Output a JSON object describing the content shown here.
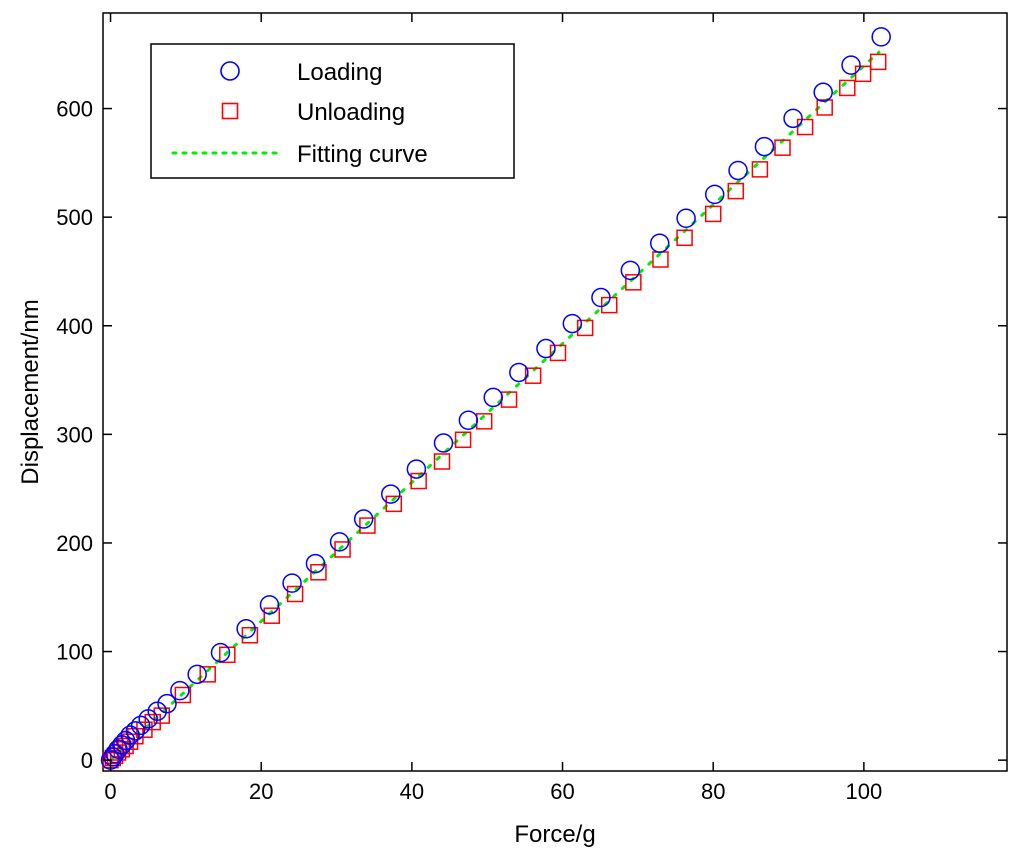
{
  "chart_data": {
    "type": "scatter",
    "title": "",
    "xlabel": "Force/g",
    "ylabel": "Displacement/nm",
    "xlim": [
      -1,
      119
    ],
    "ylim": [
      -10,
      688
    ],
    "xticks": [
      0,
      20,
      40,
      60,
      80,
      100
    ],
    "yticks": [
      0,
      100,
      200,
      300,
      400,
      500,
      600
    ],
    "grid": false,
    "legend_position": "top-left",
    "series": [
      {
        "name": "Loading",
        "marker": "circle",
        "color": "#0000ff",
        "x": [
          0,
          0.3,
          0.6,
          1.0,
          1.5,
          2.0,
          2.6,
          3.3,
          4.0,
          5.0,
          6.2,
          7.5,
          9.2,
          11.5,
          14.6,
          18.0,
          21.1,
          24.1,
          27.2,
          30.4,
          33.6,
          37.2,
          40.6,
          44.2,
          47.5,
          50.8,
          54.2,
          57.8,
          61.3,
          65.1,
          69.0,
          72.9,
          76.4,
          80.2,
          83.3,
          86.8,
          90.6,
          94.6,
          98.3,
          102.3
        ],
        "y": [
          0,
          3,
          6,
          10,
          14,
          18,
          23,
          27,
          32,
          38,
          45,
          52,
          64,
          79,
          99,
          121,
          143,
          163,
          181,
          201,
          222,
          245,
          268,
          292,
          313,
          334,
          357,
          379,
          402,
          426,
          451,
          476,
          499,
          521,
          543,
          565,
          591,
          615,
          640,
          666
        ]
      },
      {
        "name": "Unloading",
        "marker": "square",
        "color": "#ff0000",
        "x": [
          0,
          0.3,
          0.6,
          1.0,
          1.5,
          2.0,
          2.6,
          3.3,
          4.5,
          5.6,
          6.8,
          9.6,
          12.9,
          15.5,
          18.5,
          21.4,
          24.5,
          27.6,
          30.8,
          34.1,
          37.6,
          40.9,
          44.0,
          46.8,
          49.6,
          52.9,
          56.1,
          59.4,
          63.0,
          66.2,
          69.4,
          73.0,
          76.2,
          80.0,
          83.0,
          86.2,
          89.2,
          92.2,
          94.8,
          97.8,
          99.9,
          101.9
        ],
        "y": [
          0,
          2,
          4,
          7,
          10,
          13,
          17,
          22,
          28,
          35,
          41,
          60,
          79,
          97,
          115,
          133,
          153,
          173,
          194,
          216,
          236,
          257,
          275,
          295,
          312,
          332,
          354,
          375,
          398,
          419,
          440,
          461,
          481,
          503,
          524,
          544,
          564,
          583,
          601,
          619,
          632,
          643
        ]
      },
      {
        "name": "Fitting curve",
        "marker": "dotted-line",
        "color": "#00ee00",
        "x": [
          0,
          102
        ],
        "y": [
          0,
          652
        ]
      }
    ]
  }
}
